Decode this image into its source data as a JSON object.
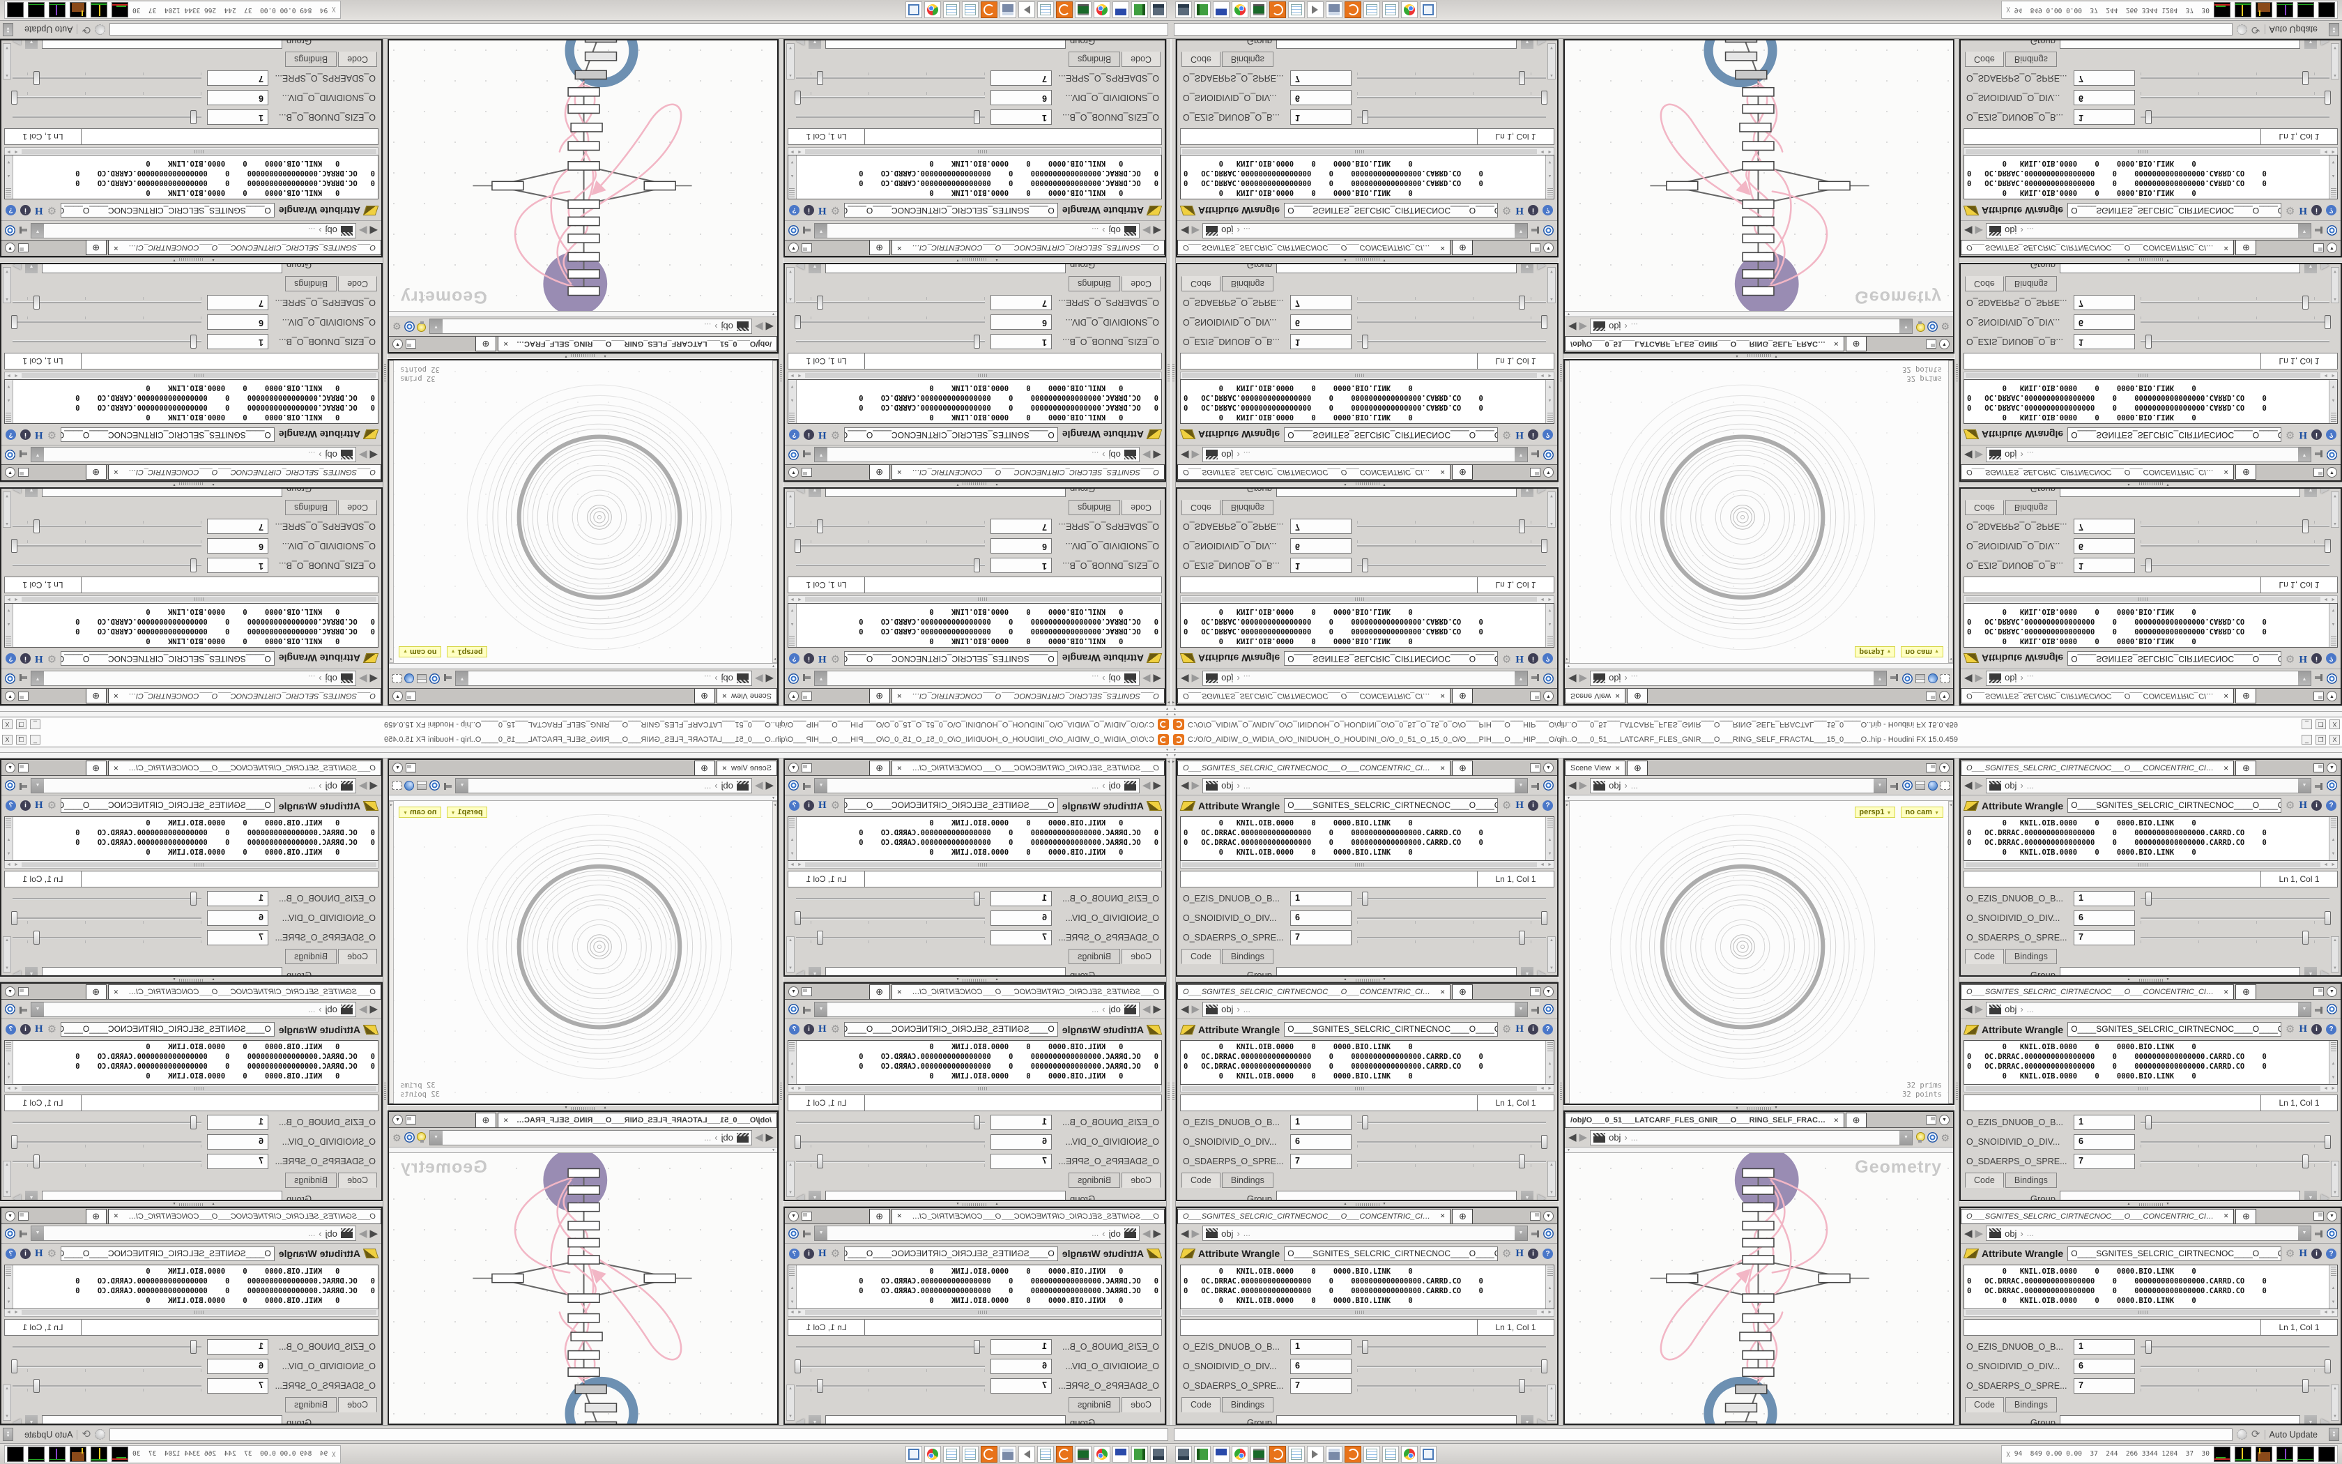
{
  "window": {
    "title": "C:/O/O_AIDIW_O_WIDIA_O/O_INIDUOH_O_HOUDINI_O/O_0_51_O_15_0_O/O___PIH___O___HIP___O/qih..O___0_51___LATCARF_FLES_GNIR___O___RING_SELF_FRACTAL___15_0____O..hip - Houdini FX 15.0.459",
    "minimize_label": "_",
    "restore_label": "❐",
    "close_label": "X"
  },
  "glyphs": {
    "close": "✕",
    "new_tab": "⊕",
    "menu_arrow": "▼",
    "back": "◀",
    "forward": "▶",
    "chevron": "›",
    "ellipsis": "...",
    "gear": "⚙",
    "houdini_h": "H",
    "info": "i",
    "help": "?",
    "refresh": "⟳",
    "up": "▲",
    "down": "▼",
    "left": "◄",
    "right": "►",
    "sysmon": "χ"
  },
  "param_pane": {
    "tab": "O___SGNITES_SELCRIC_CIRTNECNOC___O___CONCENTRIC_CIRCLES_SETINGS___O",
    "breadcrumb_root": "obj",
    "node_type_label": "Attribute Wrangle",
    "node_name_value": "O____SGNITES_SELCRIC_CIRTNECNOC____O____CONCENT",
    "code_lines": [
      "        0   KNIL.OIB.0000    0    0000.BIO.LINK    0",
      "0   OC.DRRAC.0000000000000000    0    0000000000000000.CARRD.CO    0",
      "0   OC.DRRAC.0000000000000000    0    0000000000000000.CARRD.CO    0",
      "        0   KNIL.OIB.0000    0    0000.BIO.LINK    0"
    ],
    "cursor_pos": "Ln 1, Col 1",
    "params": [
      {
        "label": "O_EZIS_DNUOB_O_B...",
        "value": "1",
        "slider_pct": 4
      },
      {
        "label": "O_SNOIDIVID_O_DIV...",
        "value": "6",
        "slider_pct": 99
      },
      {
        "label": "O_SDAERPS_O_SPRE...",
        "value": "7",
        "slider_pct": 87
      }
    ],
    "code_tab_label": "Code",
    "bindings_tab_label": "Bindings",
    "group_label": "Group"
  },
  "viewport_pane": {
    "tab": "Scene View",
    "breadcrumb_root": "obj",
    "camera_label": "persp1",
    "camera2_label": "no cam",
    "stats_line1": "32  prims",
    "stats_line2": "32 points"
  },
  "network_pane": {
    "tab": "/obj/O___0_51___LATCARF_FLES_GNIR___O___RING_SELF_FRACTAL___15_0_...",
    "breadcrumb_root": "obj",
    "watermark": "Geometry"
  },
  "status_bar": {
    "message": "",
    "auto_update_label": "Auto Update"
  },
  "taskbar": {
    "icons": [
      {
        "name": "remote-desktop-icon"
      },
      {
        "name": "address-book-icon"
      },
      {
        "name": "save-floppy-icon"
      },
      {
        "name": "chrome-icon"
      },
      {
        "name": "system-monitor-icon"
      },
      {
        "name": "houdini-icon"
      },
      {
        "name": "notepad-icon"
      },
      {
        "name": "speaker-icon"
      },
      {
        "name": "calculator-icon"
      },
      {
        "name": "houdini-icon"
      },
      {
        "name": "notepad-icon"
      },
      {
        "name": "notepad-icon"
      },
      {
        "name": "chrome-icon"
      },
      {
        "name": "image-viewer-icon"
      }
    ],
    "sysmon_values": "94  849 0.00 0.00  37  244  266 3344 1204  37  30"
  },
  "colors": {
    "houdini_orange": "#e8731a",
    "node_halo_purple": "#998cb3",
    "node_ring_blue": "#6d90b2",
    "wire_pink": "#f2b6c5",
    "viewport_label_bg": "#ffffc2",
    "thick_ring_gray": "#9e9e9e"
  }
}
